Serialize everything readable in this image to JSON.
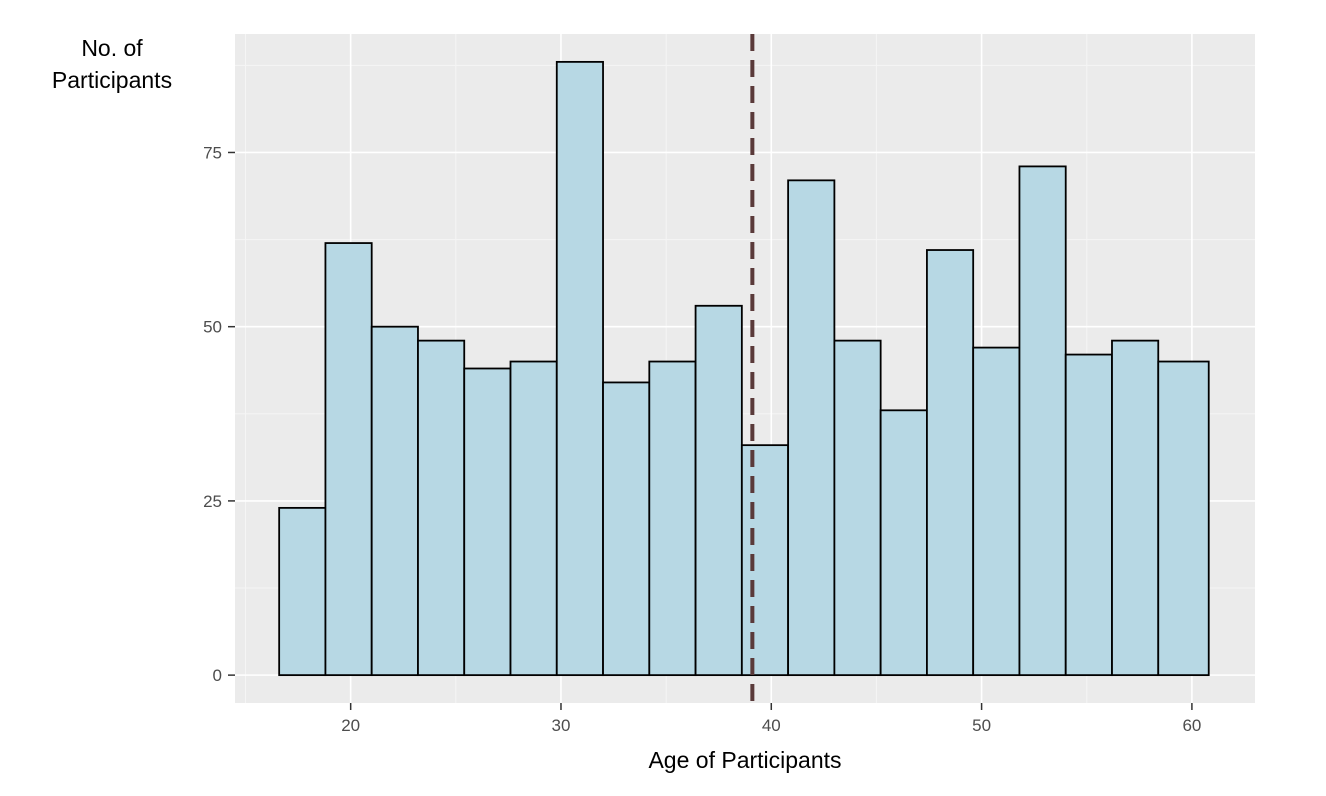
{
  "chart_data": {
    "type": "bar",
    "subtype": "histogram",
    "xlabel": "Age of Participants",
    "ylabel_lines": [
      "No. of",
      "Participants"
    ],
    "xlim": [
      14.5,
      63.0
    ],
    "ylim": [
      -4,
      92
    ],
    "x_ticks": [
      20,
      30,
      40,
      50,
      60
    ],
    "y_ticks": [
      0,
      25,
      50,
      75
    ],
    "x_minor_ticks": [
      15,
      25,
      35,
      45,
      55
    ],
    "y_minor_ticks": [
      12.5,
      37.5,
      62.5,
      87.5
    ],
    "bins": [
      {
        "x0": 16.6,
        "x1": 18.8,
        "count": 24
      },
      {
        "x0": 18.8,
        "x1": 21.0,
        "count": 62
      },
      {
        "x0": 21.0,
        "x1": 23.2,
        "count": 50
      },
      {
        "x0": 23.2,
        "x1": 25.4,
        "count": 48
      },
      {
        "x0": 25.4,
        "x1": 27.6,
        "count": 44
      },
      {
        "x0": 27.6,
        "x1": 29.8,
        "count": 45
      },
      {
        "x0": 29.8,
        "x1": 32.0,
        "count": 88
      },
      {
        "x0": 32.0,
        "x1": 34.2,
        "count": 42
      },
      {
        "x0": 34.2,
        "x1": 36.4,
        "count": 45
      },
      {
        "x0": 36.4,
        "x1": 38.6,
        "count": 53
      },
      {
        "x0": 38.6,
        "x1": 40.8,
        "count": 33
      },
      {
        "x0": 40.8,
        "x1": 43.0,
        "count": 71
      },
      {
        "x0": 43.0,
        "x1": 45.2,
        "count": 48
      },
      {
        "x0": 45.2,
        "x1": 47.4,
        "count": 38
      },
      {
        "x0": 47.4,
        "x1": 49.6,
        "count": 61
      },
      {
        "x0": 49.6,
        "x1": 51.8,
        "count": 47
      },
      {
        "x0": 51.8,
        "x1": 54.0,
        "count": 73
      },
      {
        "x0": 54.0,
        "x1": 56.2,
        "count": 46
      },
      {
        "x0": 56.2,
        "x1": 58.4,
        "count": 48
      },
      {
        "x0": 58.4,
        "x1": 60.8,
        "count": 45
      }
    ],
    "vline": {
      "x": 39.1,
      "style": "dashed"
    },
    "grid": true,
    "legend": "none",
    "colors": {
      "panel_bg": "#ebebeb",
      "grid_major": "#ffffff",
      "grid_minor": "#f5f5f5",
      "bar_fill": "#b7d8e4",
      "bar_stroke": "#000000",
      "vline": "#5a3a3a"
    }
  }
}
